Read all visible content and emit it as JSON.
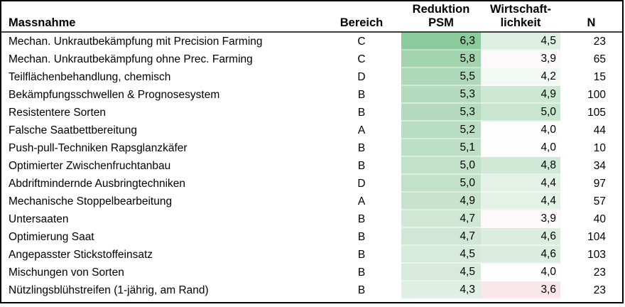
{
  "table": {
    "headers": {
      "massnahme": "Massnahme",
      "bereich": "Bereich",
      "reduktion": [
        "Reduktion",
        "PSM"
      ],
      "wirtschaftlichkeit": [
        "Wirtschaft-",
        "lichkeit"
      ],
      "n": "N"
    },
    "rows": [
      {
        "massnahme": "Mechan. Unkrautbekämpfung mit Precision Farming",
        "bereich": "C",
        "reduktion_psm": "6,3",
        "reduktion_color": "#8bca9a",
        "wirtschaftlichkeit": "4,5",
        "wirtschaft_color": "#ddeee3",
        "n": "23"
      },
      {
        "massnahme": "Mechan. Unkrautbekämpfung ohne Prec. Farming",
        "bereich": "C",
        "reduktion_psm": "5,8",
        "reduktion_color": "#a1d3ad",
        "wirtschaftlichkeit": "3,9",
        "wirtschaft_color": "#fdf8f9",
        "n": "65"
      },
      {
        "massnahme": "Teilflächenbehandlung, chemisch",
        "bereich": "D",
        "reduktion_psm": "5,5",
        "reduktion_color": "#aed8b8",
        "wirtschaftlichkeit": "4,2",
        "wirtschaft_color": "#f2f8f3",
        "n": "15"
      },
      {
        "massnahme": "Bekämpfungsschwellen & Prognosesystem",
        "bereich": "B",
        "reduktion_psm": "5,3",
        "reduktion_color": "#b5dbbe",
        "wirtschaftlichkeit": "4,9",
        "wirtschaft_color": "#cce8d3",
        "n": "100"
      },
      {
        "massnahme": "Resistentere Sorten",
        "bereich": "B",
        "reduktion_psm": "5,3",
        "reduktion_color": "#b5dbbe",
        "wirtschaftlichkeit": "5,0",
        "wirtschaft_color": "#c8e6cf",
        "n": "105"
      },
      {
        "massnahme": "Falsche Saatbettbereitung",
        "bereich": "A",
        "reduktion_psm": "5,2",
        "reduktion_color": "#b9ddc2",
        "wirtschaftlichkeit": "4,0",
        "wirtschaft_color": "#fcfdfc",
        "n": "44"
      },
      {
        "massnahme": "Push-pull-Techniken Rapsglanzkäfer",
        "bereich": "B",
        "reduktion_psm": "5,1",
        "reduktion_color": "#bddfc5",
        "wirtschaftlichkeit": "4,0",
        "wirtschaft_color": "#fcfdfc",
        "n": "10"
      },
      {
        "massnahme": "Optimierter Zwischenfruchtanbau",
        "bereich": "B",
        "reduktion_psm": "5,0",
        "reduktion_color": "#c2e1c9",
        "wirtschaftlichkeit": "4,8",
        "wirtschaft_color": "#d0e9d6",
        "n": "34"
      },
      {
        "massnahme": "Abdriftmindernde Ausbringtechniken",
        "bereich": "D",
        "reduktion_psm": "5,0",
        "reduktion_color": "#c2e1c9",
        "wirtschaftlichkeit": "4,4",
        "wirtschaft_color": "#e4f1e7",
        "n": "97"
      },
      {
        "massnahme": "Mechanische Stoppelbearbeitung",
        "bereich": "A",
        "reduktion_psm": "4,9",
        "reduktion_color": "#c7e3cd",
        "wirtschaftlichkeit": "4,4",
        "wirtschaft_color": "#e4f1e7",
        "n": "57"
      },
      {
        "massnahme": "Untersaaten",
        "bereich": "B",
        "reduktion_psm": "4,7",
        "reduktion_color": "#cfe7d4",
        "wirtschaftlichkeit": "3,9",
        "wirtschaft_color": "#fdf8f9",
        "n": "40"
      },
      {
        "massnahme": "Optimierung Saat",
        "bereich": "B",
        "reduktion_psm": "4,7",
        "reduktion_color": "#cfe7d4",
        "wirtschaftlichkeit": "4,6",
        "wirtschaft_color": "#daeddf",
        "n": "104"
      },
      {
        "massnahme": "Angepasster Stickstoffeinsatz",
        "bereich": "B",
        "reduktion_psm": "4,5",
        "reduktion_color": "#d7ebdc",
        "wirtschaftlichkeit": "4,6",
        "wirtschaft_color": "#daeddf",
        "n": "103"
      },
      {
        "massnahme": "Mischungen von Sorten",
        "bereich": "B",
        "reduktion_psm": "4,5",
        "reduktion_color": "#d7ebdc",
        "wirtschaftlichkeit": "4,0",
        "wirtschaft_color": "#fcfdfc",
        "n": "23"
      },
      {
        "massnahme": "Nützlingsblühstreifen (1-jährig, am Rand)",
        "bereich": "B",
        "reduktion_psm": "4,3",
        "reduktion_color": "#dfefe3",
        "wirtschaftlichkeit": "3,6",
        "wirtschaft_color": "#f9e6e9",
        "n": "23"
      }
    ]
  },
  "colors": {
    "outer_border": "#000000",
    "header_rule": "#404040",
    "scale_high_green": "#8bca9a",
    "scale_mid_white": "#ffffff",
    "scale_low_red": "#f9e6e9",
    "cell_divider": "rgba(255,255,255,0.45)"
  },
  "chart_data": {
    "type": "table",
    "title": "",
    "columns": [
      "Massnahme",
      "Bereich",
      "Reduktion PSM",
      "Wirtschaftlichkeit",
      "N"
    ],
    "rows": [
      [
        "Mechan. Unkrautbekämpfung mit Precision Farming",
        "C",
        6.3,
        4.5,
        23
      ],
      [
        "Mechan. Unkrautbekämpfung ohne Prec. Farming",
        "C",
        5.8,
        3.9,
        65
      ],
      [
        "Teilflächenbehandlung, chemisch",
        "D",
        5.5,
        4.2,
        15
      ],
      [
        "Bekämpfungsschwellen & Prognosesystem",
        "B",
        5.3,
        4.9,
        100
      ],
      [
        "Resistentere Sorten",
        "B",
        5.3,
        5.0,
        105
      ],
      [
        "Falsche Saatbettbereitung",
        "A",
        5.2,
        4.0,
        44
      ],
      [
        "Push-pull-Techniken Rapsglanzkäfer",
        "B",
        5.1,
        4.0,
        10
      ],
      [
        "Optimierter Zwischenfruchtanbau",
        "B",
        5.0,
        4.8,
        34
      ],
      [
        "Abdriftmindernde Ausbringtechniken",
        "D",
        5.0,
        4.4,
        97
      ],
      [
        "Mechanische Stoppelbearbeitung",
        "A",
        4.9,
        4.4,
        57
      ],
      [
        "Untersaaten",
        "B",
        4.7,
        3.9,
        40
      ],
      [
        "Optimierung Saat",
        "B",
        4.7,
        4.6,
        104
      ],
      [
        "Angepasster Stickstoffeinsatz",
        "B",
        4.5,
        4.6,
        103
      ],
      [
        "Mischungen von Sorten",
        "B",
        4.5,
        4.0,
        23
      ],
      [
        "Nützlingsblühstreifen (1-jährig, am Rand)",
        "B",
        4.3,
        3.6,
        23
      ]
    ],
    "notes": "Conditional-format heatmap on 'Reduktion PSM' and 'Wirtschaftlichkeit' columns: green = high value, white ≈ 4.0, pink/red = low value. Decimal comma formatting (e.g. 6,3)."
  }
}
